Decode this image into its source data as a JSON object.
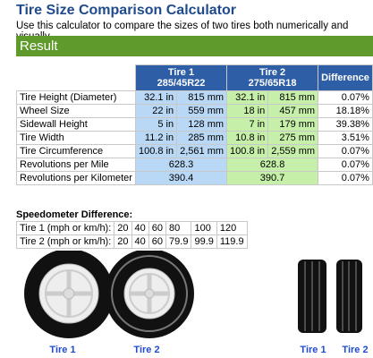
{
  "header": {
    "title": "Tire Size Comparison Calculator",
    "subtitle": "Use this calculator to compare the sizes of two tires both numerically and visually."
  },
  "result_bar": "Result",
  "table": {
    "columns": [
      {
        "name": "Tire 1",
        "size": "285/45R22"
      },
      {
        "name": "Tire 2",
        "size": "275/65R18"
      },
      {
        "name": "Difference"
      }
    ],
    "rows": [
      [
        "Tire Height (Diameter)",
        "32.1 in",
        "815 mm",
        "32.1 in",
        "815 mm",
        "0.07%"
      ],
      [
        "Wheel Size",
        "22 in",
        "559 mm",
        "18 in",
        "457 mm",
        "18.18%"
      ],
      [
        "Sidewall Height",
        "5 in",
        "128 mm",
        "7 in",
        "179 mm",
        "39.38%"
      ],
      [
        "Tire Width",
        "11.2 in",
        "285 mm",
        "10.8 in",
        "275 mm",
        "3.51%"
      ],
      [
        "Tire Circumference",
        "100.8 in",
        "2,561 mm",
        "100.8 in",
        "2,559 mm",
        "0.07%"
      ],
      [
        "Revolutions per Mile",
        "628.3",
        "628.8",
        "0.07%"
      ],
      [
        "Revolutions per Kilometer",
        "390.4",
        "390.7",
        "0.07%"
      ]
    ]
  },
  "speedometer": {
    "title": "Speedometer Difference:",
    "rows": [
      [
        "Tire 1 (mph or km/h):",
        20,
        40,
        60,
        80,
        100,
        120
      ],
      [
        "Tire 2 (mph or km/h):",
        20,
        40,
        60,
        79.9,
        99.9,
        119.9
      ]
    ]
  },
  "side_view_labels": [
    "Tire 1",
    "Tire 2"
  ],
  "tread_view_labels": [
    "Tire 1",
    "Tire 2"
  ]
}
